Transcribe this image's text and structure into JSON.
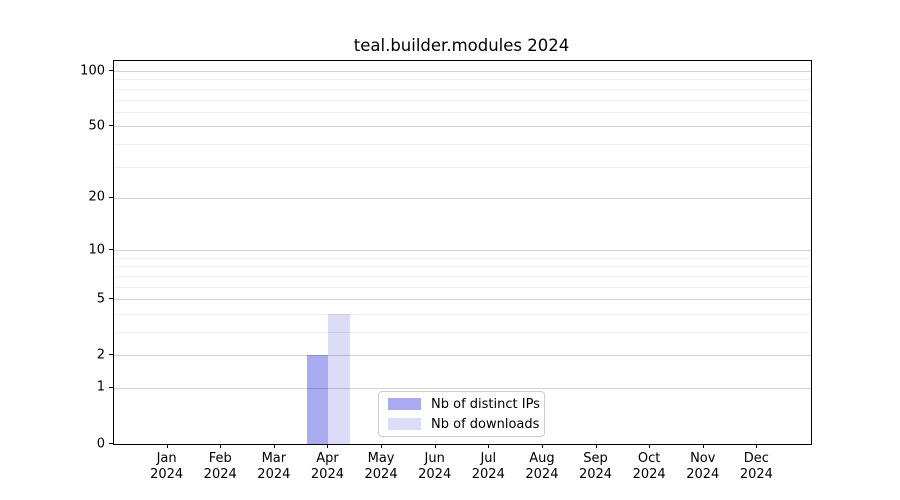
{
  "chart_data": {
    "type": "bar",
    "title": "teal.builder.modules 2024",
    "categories": [
      "Jan",
      "Feb",
      "Mar",
      "Apr",
      "May",
      "Jun",
      "Jul",
      "Aug",
      "Sep",
      "Oct",
      "Nov",
      "Dec"
    ],
    "x_tick_year": "2024",
    "series": [
      {
        "name": "Nb of distinct IPs",
        "color": "#aaaaf0",
        "values": [
          0,
          0,
          0,
          2,
          0,
          0,
          0,
          0,
          0,
          0,
          0,
          0
        ]
      },
      {
        "name": "Nb of downloads",
        "color": "#dcdcf8",
        "values": [
          0,
          0,
          0,
          4,
          0,
          0,
          0,
          0,
          0,
          0,
          0,
          0
        ]
      }
    ],
    "yscale": "log1p",
    "ylim": [
      0,
      113.4
    ],
    "y_ticks": [
      0,
      1,
      2,
      5,
      10,
      20,
      50,
      100
    ],
    "y_minor_gridlines": [
      3,
      4,
      6,
      7,
      8,
      9,
      30,
      40,
      60,
      70,
      80,
      90
    ],
    "grid": true,
    "legend_position": "lower center",
    "colors": {
      "distinct_ips_bar": "#aaaaf0",
      "downloads_bar": "#dcdcf8",
      "legend_border": "#cccccc",
      "axis": "#000000"
    }
  }
}
